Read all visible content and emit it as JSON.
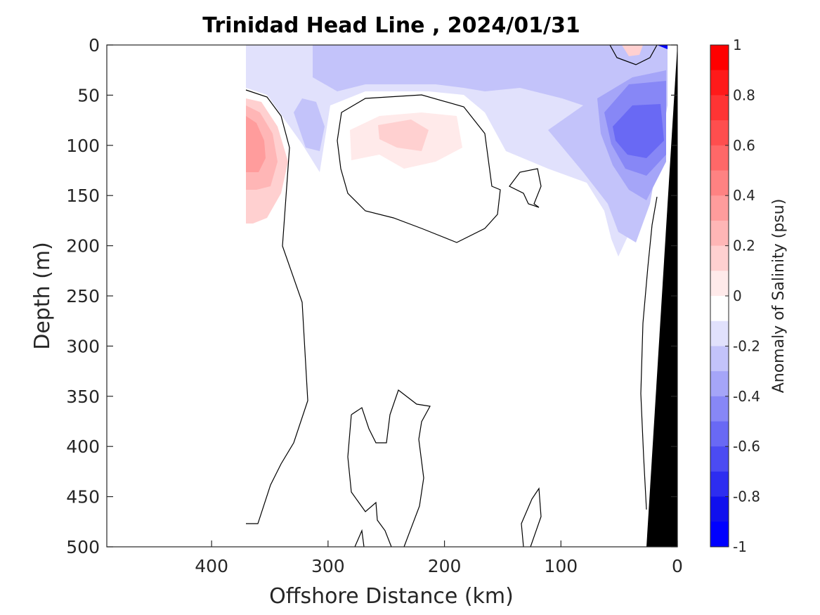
{
  "chart_data": {
    "type": "heatmap",
    "title": "Trinidad Head Line , 2024/01/31",
    "xlabel": "Offshore Distance (km)",
    "ylabel": "Depth (m)",
    "xlim": [
      490,
      0
    ],
    "ylim": [
      0,
      500
    ],
    "x_ticks": [
      400,
      300,
      200,
      100,
      0
    ],
    "x_tick_labels": [
      "400",
      "300",
      "200",
      "100",
      "0"
    ],
    "y_ticks": [
      0,
      50,
      100,
      150,
      200,
      250,
      300,
      350,
      400,
      450,
      500
    ],
    "y_tick_labels": [
      "0",
      "50",
      "100",
      "150",
      "200",
      "250",
      "300",
      "350",
      "400",
      "450",
      "500"
    ],
    "colorbar": {
      "label": "Anomaly of Salinity (psu)",
      "range": [
        -1,
        1
      ],
      "ticks": [
        1,
        0.8,
        0.6,
        0.4,
        0.2,
        0,
        -0.2,
        -0.4,
        -0.6,
        -0.8,
        -1
      ],
      "tick_labels": [
        "1",
        "0.8",
        "0.6",
        "0.4",
        "0.2",
        "0",
        "-0.2",
        "-0.4",
        "-0.6",
        "-0.8",
        "-1"
      ],
      "levels": [
        1.0,
        0.9,
        0.8,
        0.7,
        0.6,
        0.5,
        0.4,
        0.3,
        0.2,
        0.1,
        0.0,
        -0.1,
        -0.2,
        -0.3,
        -0.4,
        -0.5,
        -0.6,
        -0.7,
        -0.8,
        -0.9
      ],
      "colors": [
        "#ff0000",
        "#ff1a1a",
        "#ff3434",
        "#ff4e4e",
        "#ff6868",
        "#ff8282",
        "#ff9c9c",
        "#ffb6b6",
        "#ffd0d0",
        "#ffeaea",
        "#ffffff",
        "#e1e1fc",
        "#c3c3fa",
        "#a5a5f8",
        "#8787f6",
        "#6969f4",
        "#4b4bf2",
        "#2d2df0",
        "#1010ee",
        "#0000ff"
      ]
    },
    "features": [
      {
        "name": "positive anomaly core",
        "distance_km": 362,
        "depth_m": 100,
        "value": 0.5
      },
      {
        "name": "positive anomaly",
        "distance_km": 235,
        "depth_m": 90,
        "value": 0.2
      },
      {
        "name": "positive anomaly",
        "distance_km": 40,
        "depth_m": 5,
        "value": 0.2
      },
      {
        "name": "negative anomaly core",
        "distance_km": 40,
        "depth_m": 90,
        "value": -0.7
      },
      {
        "name": "negative surface layer",
        "distance_km": 200,
        "depth_m": 25,
        "value": -0.25
      },
      {
        "name": "negative anomaly",
        "distance_km": 315,
        "depth_m": 80,
        "value": -0.35
      }
    ],
    "bathymetry": {
      "color": "#000000",
      "distance_km": [
        0,
        25,
        0
      ],
      "depth_m": [
        0,
        500,
        500
      ]
    }
  }
}
